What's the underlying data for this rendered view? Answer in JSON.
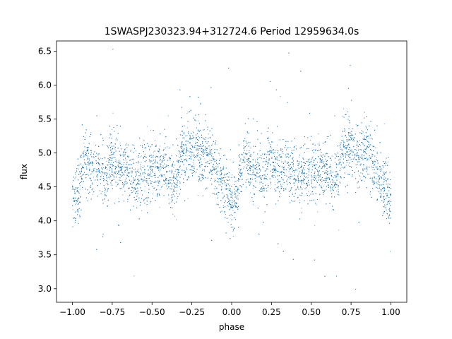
{
  "chart_data": {
    "type": "scatter",
    "title": "1SWASPJ230323.94+312724.6 Period 12959634.0s",
    "xlabel": "phase",
    "ylabel": "flux",
    "xlim": [
      -1.1,
      1.1
    ],
    "ylim": [
      2.8,
      6.65
    ],
    "x_ticks": [
      -1.0,
      -0.75,
      -0.5,
      -0.25,
      0.0,
      0.25,
      0.5,
      0.75,
      1.0
    ],
    "x_tick_labels": [
      "−1.00",
      "−0.75",
      "−0.50",
      "−0.25",
      "0.00",
      "0.25",
      "0.50",
      "0.75",
      "1.00"
    ],
    "y_ticks": [
      3.0,
      3.5,
      4.0,
      4.5,
      5.0,
      5.5,
      6.0,
      6.5
    ],
    "y_tick_labels": [
      "3.0",
      "3.5",
      "4.0",
      "4.5",
      "5.0",
      "5.5",
      "6.0",
      "6.5"
    ],
    "grid": false,
    "legend": "none",
    "marker_color": "#1f77b4",
    "series": [
      {
        "phase_profile": [
          [
            0.0,
            4.35
          ],
          [
            0.02,
            4.3
          ],
          [
            0.04,
            4.42
          ],
          [
            0.06,
            4.75
          ],
          [
            0.08,
            4.88
          ],
          [
            0.1,
            4.95
          ],
          [
            0.12,
            4.72
          ],
          [
            0.14,
            4.68
          ],
          [
            0.16,
            4.8
          ],
          [
            0.18,
            4.72
          ],
          [
            0.2,
            4.65
          ],
          [
            0.22,
            4.68
          ],
          [
            0.24,
            4.95
          ],
          [
            0.26,
            4.88
          ],
          [
            0.28,
            4.75
          ],
          [
            0.3,
            4.78
          ],
          [
            0.32,
            4.72
          ],
          [
            0.34,
            4.82
          ],
          [
            0.36,
            4.72
          ],
          [
            0.38,
            4.68
          ],
          [
            0.4,
            4.68
          ],
          [
            0.42,
            4.65
          ],
          [
            0.44,
            4.7
          ],
          [
            0.46,
            4.75
          ],
          [
            0.48,
            4.72
          ],
          [
            0.5,
            4.75
          ],
          [
            0.52,
            4.75
          ],
          [
            0.54,
            4.72
          ],
          [
            0.56,
            4.78
          ],
          [
            0.58,
            4.75
          ],
          [
            0.6,
            4.72
          ],
          [
            0.62,
            4.65
          ],
          [
            0.64,
            4.55
          ],
          [
            0.66,
            4.6
          ],
          [
            0.68,
            4.95
          ],
          [
            0.7,
            5.02
          ],
          [
            0.72,
            5.0
          ],
          [
            0.74,
            5.08
          ],
          [
            0.76,
            5.05
          ],
          [
            0.78,
            5.1
          ],
          [
            0.8,
            5.02
          ],
          [
            0.82,
            4.95
          ],
          [
            0.84,
            5.0
          ],
          [
            0.86,
            4.95
          ],
          [
            0.88,
            4.85
          ],
          [
            0.9,
            4.78
          ],
          [
            0.92,
            4.62
          ],
          [
            0.94,
            4.55
          ],
          [
            0.96,
            4.45
          ],
          [
            0.98,
            4.38
          ],
          [
            1.0,
            4.35
          ]
        ],
        "scatter_sigma": 0.22
      }
    ]
  }
}
